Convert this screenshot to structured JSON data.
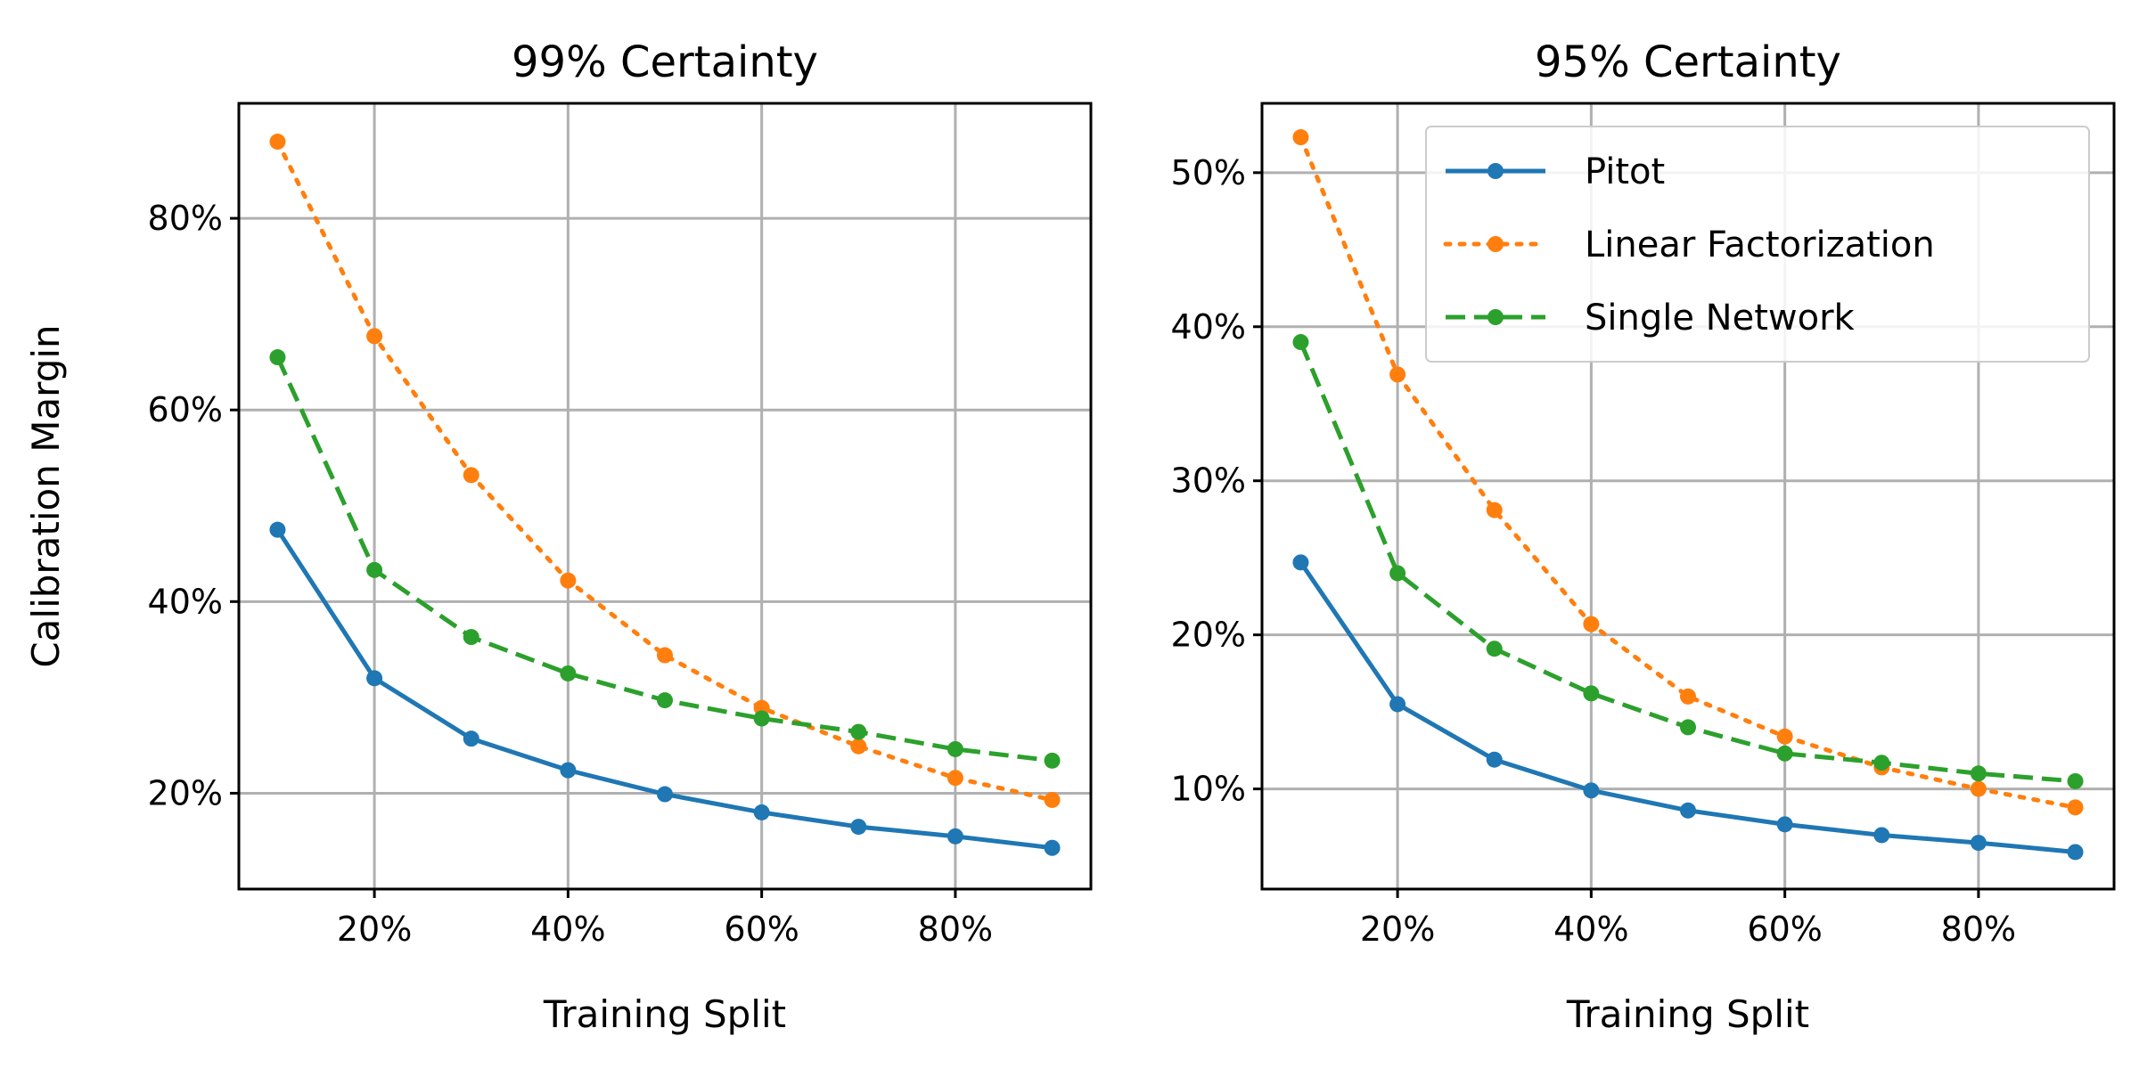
{
  "figure": {
    "background": "#ffffff",
    "grid_color": "#b0b0b0",
    "frame_color": "#000000"
  },
  "chart_data": [
    {
      "type": "line",
      "title": "99% Certainty",
      "xlabel": "Training Split",
      "ylabel": "Calibration Margin",
      "xlim": [
        0.06,
        0.94
      ],
      "ylim": [
        0.1,
        0.92
      ],
      "xticks": [
        0.2,
        0.4,
        0.6,
        0.8
      ],
      "xtick_labels": [
        "20%",
        "40%",
        "60%",
        "80%"
      ],
      "yticks": [
        0.2,
        0.4,
        0.6,
        0.8
      ],
      "ytick_labels": [
        "20%",
        "40%",
        "60%",
        "80%"
      ],
      "grid": true,
      "legend": null,
      "x": [
        0.1,
        0.2,
        0.3,
        0.4,
        0.5,
        0.6,
        0.7,
        0.8,
        0.9
      ],
      "series": [
        {
          "name": "Pitot",
          "color": "#1f77b4",
          "style": "solid",
          "values": [
            0.475,
            0.32,
            0.257,
            0.224,
            0.199,
            0.18,
            0.165,
            0.155,
            0.143
          ]
        },
        {
          "name": "Linear Factorization",
          "color": "#ff7f0e",
          "style": "dotted",
          "values": [
            0.88,
            0.677,
            0.532,
            0.422,
            0.344,
            0.289,
            0.249,
            0.216,
            0.193
          ]
        },
        {
          "name": "Single Network",
          "color": "#2ca02c",
          "style": "dashed",
          "values": [
            0.655,
            0.433,
            0.363,
            0.325,
            0.297,
            0.278,
            0.264,
            0.246,
            0.234
          ]
        }
      ]
    },
    {
      "type": "line",
      "title": "95% Certainty",
      "xlabel": "Training Split",
      "ylabel": "",
      "xlim": [
        0.06,
        0.94
      ],
      "ylim": [
        0.035,
        0.545
      ],
      "xticks": [
        0.2,
        0.4,
        0.6,
        0.8
      ],
      "xtick_labels": [
        "20%",
        "40%",
        "60%",
        "80%"
      ],
      "yticks": [
        0.1,
        0.2,
        0.3,
        0.4,
        0.5
      ],
      "ytick_labels": [
        "10%",
        "20%",
        "30%",
        "40%",
        "50%"
      ],
      "grid": true,
      "legend": "top-right",
      "x": [
        0.1,
        0.2,
        0.3,
        0.4,
        0.5,
        0.6,
        0.7,
        0.8,
        0.9
      ],
      "series": [
        {
          "name": "Pitot",
          "color": "#1f77b4",
          "style": "solid",
          "values": [
            0.247,
            0.155,
            0.119,
            0.099,
            0.086,
            0.077,
            0.07,
            0.065,
            0.059
          ]
        },
        {
          "name": "Linear Factorization",
          "color": "#ff7f0e",
          "style": "dotted",
          "values": [
            0.523,
            0.369,
            0.281,
            0.207,
            0.16,
            0.134,
            0.114,
            0.1,
            0.088
          ]
        },
        {
          "name": "Single Network",
          "color": "#2ca02c",
          "style": "dashed",
          "values": [
            0.39,
            0.24,
            0.191,
            0.162,
            0.14,
            0.123,
            0.117,
            0.11,
            0.105
          ]
        }
      ]
    }
  ]
}
